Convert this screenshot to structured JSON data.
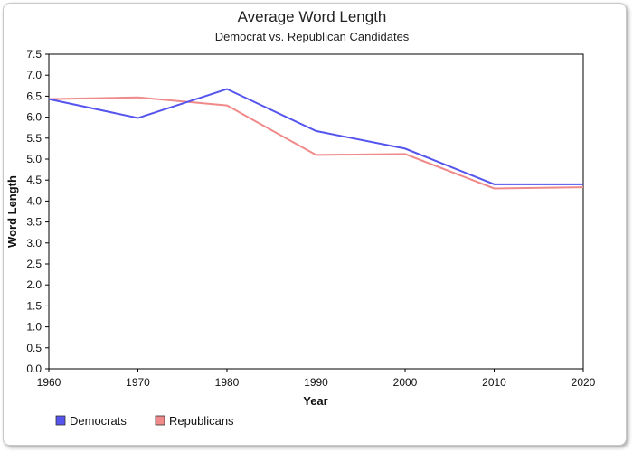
{
  "chart_data": {
    "type": "line",
    "title": "Average Word Length",
    "subtitle": "Democrat vs. Republican Candidates",
    "xlabel": "Year",
    "ylabel": "Word Length",
    "x": [
      1960,
      1970,
      1980,
      1990,
      2000,
      2010,
      2020
    ],
    "xlim": [
      1960,
      2020
    ],
    "ylim": [
      0,
      7.5
    ],
    "y_ticks": [
      "0.0",
      "0.5",
      "1.0",
      "1.5",
      "2.0",
      "2.5",
      "3.0",
      "3.5",
      "4.0",
      "4.5",
      "5.0",
      "5.5",
      "6.0",
      "6.5",
      "7.0",
      "7.5"
    ],
    "x_ticks": [
      "1960",
      "1970",
      "1980",
      "1990",
      "2000",
      "2010",
      "2020"
    ],
    "grid": false,
    "legend_position": "bottom-left",
    "series": [
      {
        "name": "Democrats",
        "color": "#5555ee",
        "values": [
          6.43,
          5.98,
          6.67,
          5.67,
          5.25,
          4.4,
          4.4
        ]
      },
      {
        "name": "Republicans",
        "color": "#f08a8a",
        "values": [
          6.43,
          6.47,
          6.28,
          5.1,
          5.12,
          4.3,
          4.33
        ]
      }
    ]
  }
}
